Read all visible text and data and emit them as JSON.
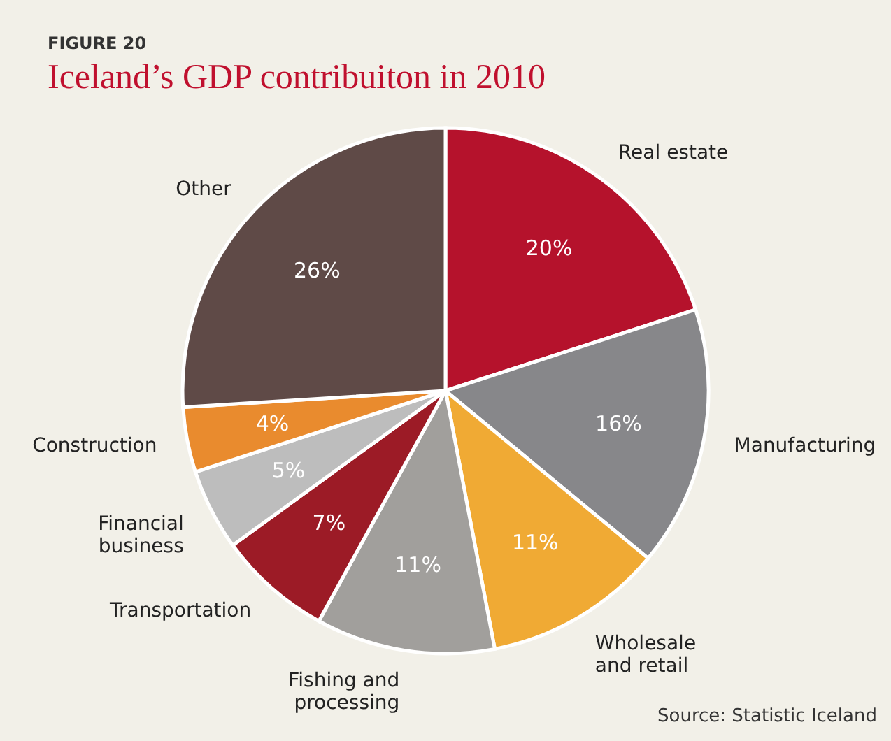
{
  "chart_data": {
    "type": "pie",
    "title": "Iceland’s GDP contribuiton in 2010",
    "annotations": [
      "FIGURE 20",
      "Source: Statistic Iceland"
    ],
    "categories": [
      "Real estate",
      "Manufacturing",
      "Wholesale and retail",
      "Fishing and processing",
      "Transportation",
      "Financial business",
      "Construction",
      "Other"
    ],
    "values": [
      20,
      16,
      11,
      11,
      7,
      5,
      4,
      26
    ],
    "value_labels": [
      "20%",
      "16%",
      "11%",
      "11%",
      "7%",
      "5%",
      "4%",
      "26%"
    ],
    "colors": [
      "#b5122c",
      "#87878a",
      "#f0aa34",
      "#a19f9c",
      "#9c1b26",
      "#bdbdbd",
      "#e98b2e",
      "#5f4a47"
    ],
    "legend": false
  }
}
